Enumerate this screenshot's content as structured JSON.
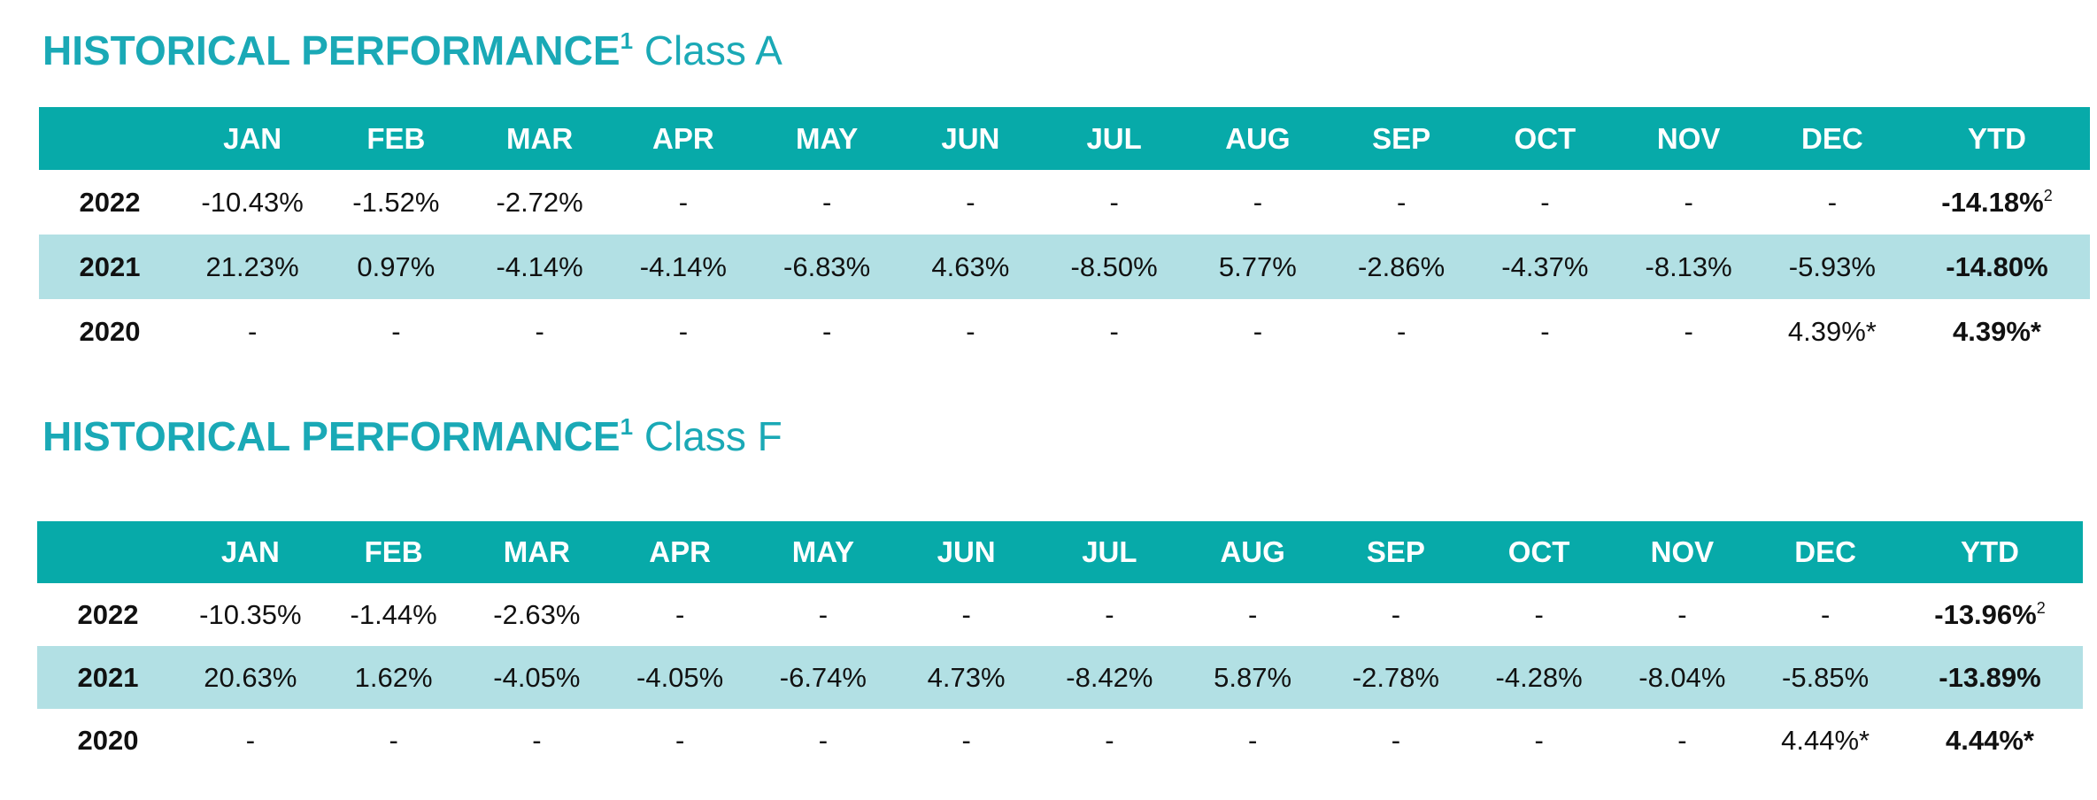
{
  "sections": [
    {
      "title_bold": "HISTORICAL PERFORMANCE",
      "title_sup": "1",
      "title_class": "Class A",
      "headers": [
        "",
        "JAN",
        "FEB",
        "MAR",
        "APR",
        "MAY",
        "JUN",
        "JUL",
        "AUG",
        "SEP",
        "OCT",
        "NOV",
        "DEC",
        "YTD"
      ],
      "rows": [
        {
          "year": "2022",
          "months": [
            "-10.43%",
            "-1.52%",
            "-2.72%",
            "-",
            "-",
            "-",
            "-",
            "-",
            "-",
            "-",
            "-",
            "-"
          ],
          "ytd": "-14.18%",
          "ytd_sup": "2"
        },
        {
          "year": "2021",
          "months": [
            "21.23%",
            "0.97%",
            "-4.14%",
            "-4.14%",
            "-6.83%",
            "4.63%",
            "-8.50%",
            "5.77%",
            "-2.86%",
            "-4.37%",
            "-8.13%",
            "-5.93%"
          ],
          "ytd": "-14.80%",
          "ytd_sup": ""
        },
        {
          "year": "2020",
          "months": [
            "-",
            "-",
            "-",
            "-",
            "-",
            "-",
            "-",
            "-",
            "-",
            "-",
            "-",
            "4.39%*"
          ],
          "ytd": "4.39%*",
          "ytd_sup": ""
        }
      ]
    },
    {
      "title_bold": "HISTORICAL PERFORMANCE",
      "title_sup": "1",
      "title_class": "Class F",
      "headers": [
        "",
        "JAN",
        "FEB",
        "MAR",
        "APR",
        "MAY",
        "JUN",
        "JUL",
        "AUG",
        "SEP",
        "OCT",
        "NOV",
        "DEC",
        "YTD"
      ],
      "rows": [
        {
          "year": "2022",
          "months": [
            "-10.35%",
            "-1.44%",
            "-2.63%",
            "-",
            "-",
            "-",
            "-",
            "-",
            "-",
            "-",
            "-",
            "-"
          ],
          "ytd": "-13.96%",
          "ytd_sup": "2"
        },
        {
          "year": "2021",
          "months": [
            "20.63%",
            "1.62%",
            "-4.05%",
            "-4.05%",
            "-6.74%",
            "4.73%",
            "-8.42%",
            "5.87%",
            "-2.78%",
            "-4.28%",
            "-8.04%",
            "-5.85%"
          ],
          "ytd": "-13.89%",
          "ytd_sup": ""
        },
        {
          "year": "2020",
          "months": [
            "-",
            "-",
            "-",
            "-",
            "-",
            "-",
            "-",
            "-",
            "-",
            "-",
            "-",
            "4.44%*"
          ],
          "ytd": "4.44%*",
          "ytd_sup": ""
        }
      ]
    }
  ],
  "colors": {
    "title": "#1aa9b6",
    "header_bg": "#07aaa9",
    "alt_row_bg": "#b2e0e4"
  }
}
